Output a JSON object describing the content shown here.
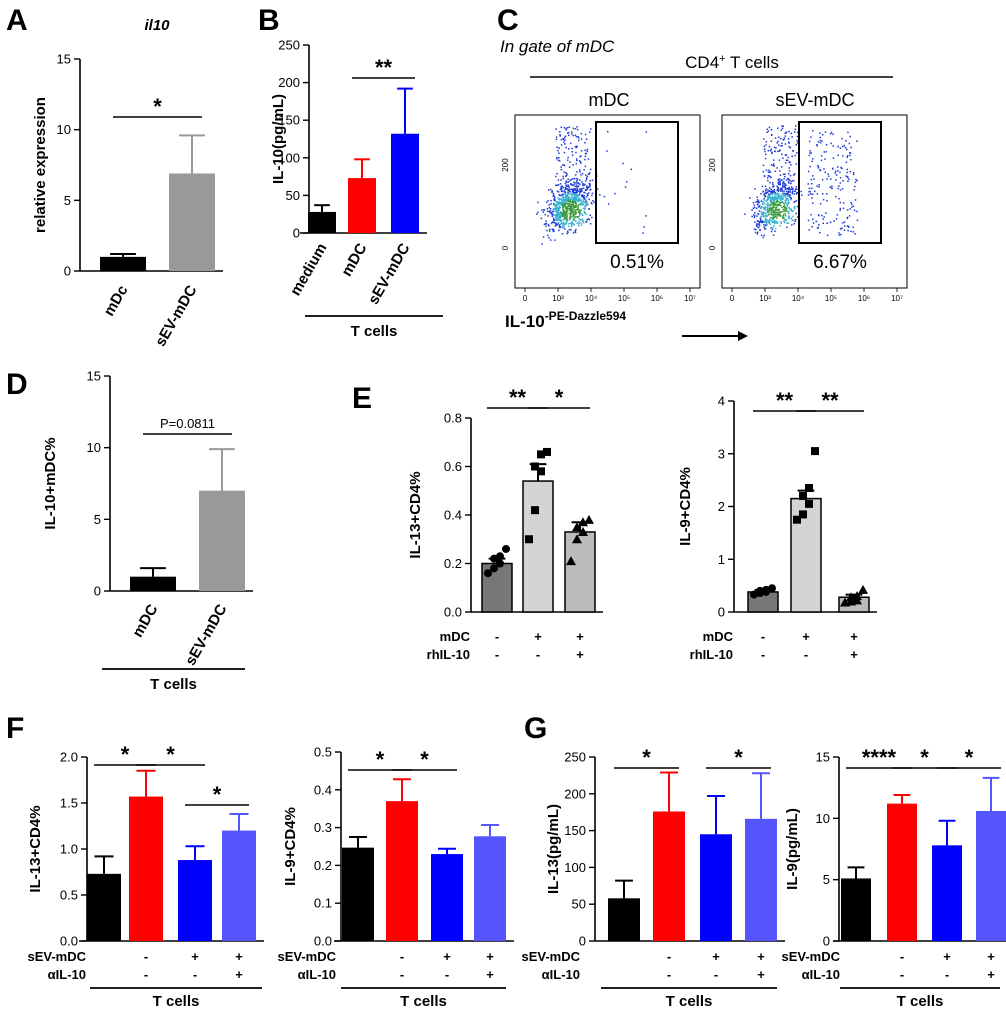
{
  "panel_letters": [
    "A",
    "B",
    "C",
    "D",
    "E",
    "F",
    "G"
  ],
  "chart_data": [
    {
      "id": "A",
      "type": "bar",
      "title": "il10",
      "ylabel": "relative expression",
      "ylim": [
        0,
        15
      ],
      "yticks": [
        "0",
        "5",
        "10",
        "15"
      ],
      "categories": [
        "mDc",
        "sEV-mDC"
      ],
      "values": [
        1.0,
        6.9
      ],
      "errors": [
        0.2,
        2.7
      ],
      "colors": [
        "#000000",
        "#999999"
      ],
      "significance": [
        {
          "between": [
            0,
            1
          ],
          "label": "*"
        }
      ]
    },
    {
      "id": "B",
      "type": "bar",
      "ylabel": "IL-10(pg/mL)",
      "ylim": [
        0,
        250
      ],
      "yticks": [
        "0",
        "50",
        "100",
        "150",
        "200",
        "250"
      ],
      "categories": [
        "medium",
        "mDC",
        "sEV-mDC"
      ],
      "values": [
        28,
        73,
        132
      ],
      "errors": [
        9,
        25,
        60
      ],
      "colors": [
        "#000000",
        "#ff0000",
        "#0000ff"
      ],
      "group_label": "T cells",
      "significance": [
        {
          "between": [
            1,
            2
          ],
          "label": "**"
        }
      ]
    },
    {
      "id": "D",
      "type": "bar",
      "ylabel": "IL-10+mDC%",
      "ylim": [
        0,
        15
      ],
      "yticks": [
        "0",
        "5",
        "10",
        "15"
      ],
      "categories": [
        "mDC",
        "sEV-mDC"
      ],
      "values": [
        1.0,
        7.0
      ],
      "errors": [
        0.6,
        2.9
      ],
      "colors": [
        "#000000",
        "#999999"
      ],
      "group_label": "T cells",
      "significance": [
        {
          "between": [
            0,
            1
          ],
          "label": "P=0.0811"
        }
      ]
    },
    {
      "id": "E1",
      "type": "bar",
      "ylabel": "IL-13+CD4%",
      "ylim": [
        0,
        0.8
      ],
      "yticks": [
        "0.0",
        "0.2",
        "0.4",
        "0.6",
        "0.8"
      ],
      "values": [
        0.2,
        0.54,
        0.33
      ],
      "errors": [
        0.02,
        0.07,
        0.04
      ],
      "colors": [
        "#777777",
        "#d4d4d4",
        "#bbbbbb"
      ],
      "points": [
        [
          0.16,
          0.18,
          0.2,
          0.22,
          0.23,
          0.26
        ],
        [
          0.3,
          0.42,
          0.58,
          0.6,
          0.65,
          0.66
        ],
        [
          0.21,
          0.3,
          0.33,
          0.35,
          0.37,
          0.38
        ]
      ],
      "markers": [
        "circle",
        "square",
        "triangle"
      ],
      "conditions": [
        {
          "label": "mDC",
          "values": [
            "-",
            "+",
            "+"
          ]
        },
        {
          "label": "rhIL-10",
          "values": [
            "-",
            "-",
            "+"
          ]
        }
      ],
      "significance": [
        {
          "between": [
            0,
            1
          ],
          "label": "**"
        },
        {
          "between": [
            1,
            2
          ],
          "label": "*"
        }
      ]
    },
    {
      "id": "E2",
      "type": "bar",
      "ylabel": "IL-9+CD4%",
      "ylim": [
        0,
        4
      ],
      "yticks": [
        "0",
        "1",
        "2",
        "3",
        "4"
      ],
      "values": [
        0.38,
        2.15,
        0.28
      ],
      "errors": [
        0.04,
        0.15,
        0.05
      ],
      "colors": [
        "#777777",
        "#d4d4d4",
        "#bbbbbb"
      ],
      "points": [
        [
          0.33,
          0.36,
          0.38,
          0.4,
          0.42,
          0.45
        ],
        [
          1.75,
          1.85,
          2.05,
          2.2,
          2.35,
          3.05
        ],
        [
          0.18,
          0.2,
          0.22,
          0.28,
          0.3,
          0.42
        ]
      ],
      "markers": [
        "circle",
        "square",
        "triangle"
      ],
      "conditions": [
        {
          "label": "mDC",
          "values": [
            "-",
            "+",
            "+"
          ]
        },
        {
          "label": "rhIL-10",
          "values": [
            "-",
            "-",
            "+"
          ]
        }
      ],
      "significance": [
        {
          "between": [
            0,
            1
          ],
          "label": "**"
        },
        {
          "between": [
            1,
            2
          ],
          "label": "**"
        }
      ]
    },
    {
      "id": "F1",
      "type": "bar",
      "ylabel": "IL-13+CD4%",
      "ylim": [
        0,
        2.0
      ],
      "yticks": [
        "0.0",
        "0.5",
        "1.0",
        "1.5",
        "2.0"
      ],
      "values": [
        0.73,
        1.57,
        0.88,
        1.2
      ],
      "errors": [
        0.19,
        0.28,
        0.15,
        0.18
      ],
      "colors": [
        "#000000",
        "#ff0000",
        "#0000ff",
        "#5555ff"
      ],
      "conditions": [
        {
          "label": "sEV-mDC",
          "values": [
            "",
            "-",
            "+",
            "+"
          ]
        },
        {
          "label": "αIL-10",
          "values": [
            "",
            "-",
            "-",
            "+"
          ]
        }
      ],
      "group_label": "T cells",
      "significance": [
        {
          "between": [
            0,
            1
          ],
          "label": "*"
        },
        {
          "between": [
            1,
            2
          ],
          "label": "*"
        },
        {
          "between": [
            2,
            3
          ],
          "label": "*"
        }
      ]
    },
    {
      "id": "F2",
      "type": "bar",
      "ylabel": "IL-9+CD4%",
      "ylim": [
        0,
        0.5
      ],
      "yticks": [
        "0.0",
        "0.1",
        "0.2",
        "0.3",
        "0.4",
        "0.5"
      ],
      "values": [
        0.247,
        0.37,
        0.23,
        0.277
      ],
      "errors": [
        0.028,
        0.058,
        0.014,
        0.03
      ],
      "colors": [
        "#000000",
        "#ff0000",
        "#0000ff",
        "#5555ff"
      ],
      "conditions": [
        {
          "label": "sEV-mDC",
          "values": [
            "",
            "-",
            "+",
            "+"
          ]
        },
        {
          "label": "αIL-10",
          "values": [
            "",
            "-",
            "-",
            "+"
          ]
        }
      ],
      "group_label": "T cells",
      "significance": [
        {
          "between": [
            0,
            1
          ],
          "label": "*"
        },
        {
          "between": [
            1,
            2
          ],
          "label": "*"
        }
      ]
    },
    {
      "id": "G1",
      "type": "bar",
      "ylabel": "IL-13(pg/mL)",
      "ylim": [
        0,
        250
      ],
      "yticks": [
        "0",
        "50",
        "100",
        "150",
        "200",
        "250"
      ],
      "values": [
        58,
        176,
        145,
        166
      ],
      "errors": [
        24,
        53,
        52,
        62
      ],
      "colors": [
        "#000000",
        "#ff0000",
        "#0000ff",
        "#5555ff"
      ],
      "conditions": [
        {
          "label": "sEV-mDC",
          "values": [
            "",
            "-",
            "+",
            "+"
          ]
        },
        {
          "label": "αIL-10",
          "values": [
            "",
            "-",
            "-",
            "+"
          ]
        }
      ],
      "group_label": "T cells",
      "significance": [
        {
          "between": [
            0,
            1
          ],
          "label": "*"
        },
        {
          "between": [
            2,
            3
          ],
          "label": "*"
        }
      ]
    },
    {
      "id": "G2",
      "type": "bar",
      "ylabel": "IL-9(pg/mL)",
      "ylim": [
        0,
        15
      ],
      "yticks": [
        "0",
        "5",
        "10",
        "15"
      ],
      "values": [
        5.1,
        11.2,
        7.8,
        10.6
      ],
      "errors": [
        0.9,
        0.7,
        2.0,
        2.7
      ],
      "colors": [
        "#000000",
        "#ff0000",
        "#0000ff",
        "#5555ff"
      ],
      "conditions": [
        {
          "label": "sEV-mDC",
          "values": [
            "",
            "-",
            "+",
            "+"
          ]
        },
        {
          "label": "αIL-10",
          "values": [
            "",
            "-",
            "-",
            "+"
          ]
        }
      ],
      "group_label": "T cells",
      "significance": [
        {
          "between": [
            0,
            1
          ],
          "label": "****"
        },
        {
          "between": [
            1,
            2
          ],
          "label": "*"
        },
        {
          "between": [
            2,
            3
          ],
          "label": "*"
        }
      ]
    }
  ],
  "flow": {
    "gate_label": "In gate of mDC",
    "group_label": "CD4+ T cells",
    "xaxis_label": "IL-10",
    "xaxis_superscript": "-PE-Dazzle594",
    "yticks": [
      "0",
      "200"
    ],
    "xticks": [
      "0",
      "10³",
      "10⁴",
      "10⁵",
      "10⁶",
      "10⁷"
    ],
    "plots": [
      {
        "title": "mDC",
        "gate_percent": "0.51%",
        "positive_fraction": 0.0051
      },
      {
        "title": "sEV-mDC",
        "gate_percent": "6.67%",
        "positive_fraction": 0.0667
      }
    ]
  }
}
